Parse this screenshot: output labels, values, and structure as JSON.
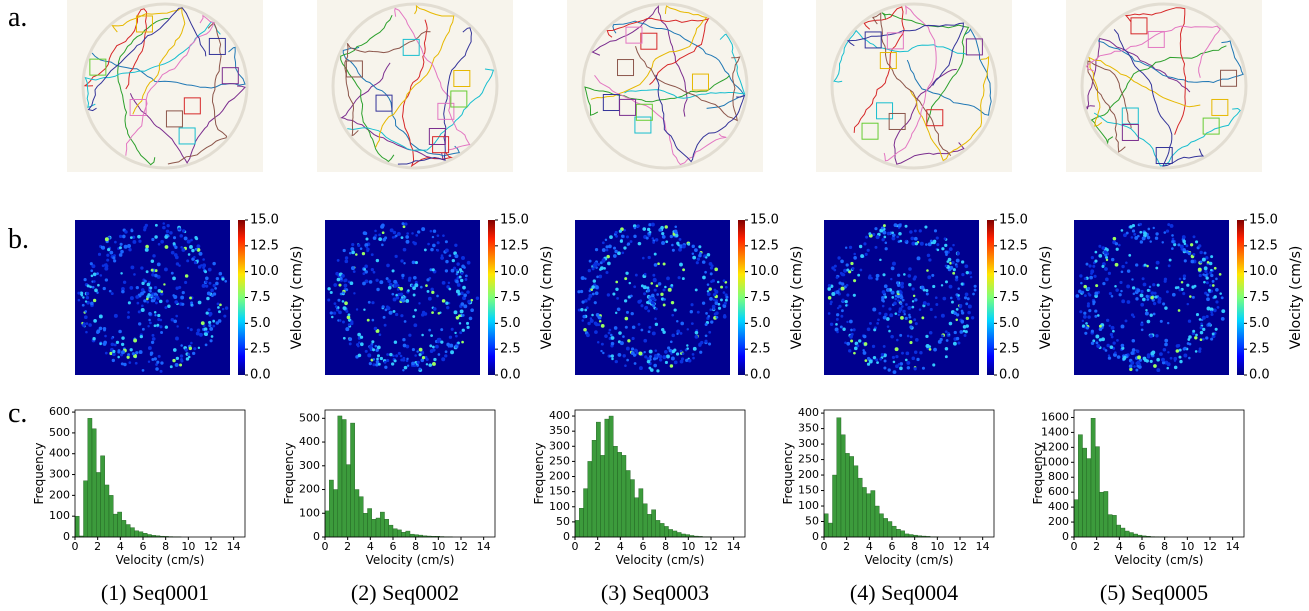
{
  "panel_labels": [
    "a.",
    "b.",
    "c."
  ],
  "chart_data": [
    {
      "type": "heatmap",
      "colorbar_label": "Velocity (cm/s)",
      "clim": [
        0,
        15
      ],
      "cticks": [
        {
          "value": 0,
          "label": "0.0"
        },
        {
          "value": 2.5,
          "label": "2.5"
        },
        {
          "value": 5,
          "label": "5.0"
        },
        {
          "value": 7.5,
          "label": "7.5"
        },
        {
          "value": 10,
          "label": "10.0"
        },
        {
          "value": 12.5,
          "label": "12.5"
        },
        {
          "value": 15,
          "label": "15.0"
        }
      ]
    },
    {
      "type": "heatmap",
      "colorbar_label": "Velocity (cm/s)",
      "clim": [
        0,
        15
      ],
      "cticks": [
        {
          "value": 0,
          "label": "0.0"
        },
        {
          "value": 2.5,
          "label": "2.5"
        },
        {
          "value": 5,
          "label": "5.0"
        },
        {
          "value": 7.5,
          "label": "7.5"
        },
        {
          "value": 10,
          "label": "10.0"
        },
        {
          "value": 12.5,
          "label": "12.5"
        },
        {
          "value": 15,
          "label": "15.0"
        }
      ]
    },
    {
      "type": "heatmap",
      "colorbar_label": "Velocity (cm/s)",
      "clim": [
        0,
        15
      ],
      "cticks": [
        {
          "value": 0,
          "label": "0.0"
        },
        {
          "value": 2.5,
          "label": "2.5"
        },
        {
          "value": 5,
          "label": "5.0"
        },
        {
          "value": 7.5,
          "label": "7.5"
        },
        {
          "value": 10,
          "label": "10.0"
        },
        {
          "value": 12.5,
          "label": "12.5"
        },
        {
          "value": 15,
          "label": "15.0"
        }
      ]
    },
    {
      "type": "heatmap",
      "colorbar_label": "Velocity (cm/s)",
      "clim": [
        0,
        15
      ],
      "cticks": [
        {
          "value": 0,
          "label": "0.0"
        },
        {
          "value": 2.5,
          "label": "2.5"
        },
        {
          "value": 5,
          "label": "5.0"
        },
        {
          "value": 7.5,
          "label": "7.5"
        },
        {
          "value": 10,
          "label": "10.0"
        },
        {
          "value": 12.5,
          "label": "12.5"
        },
        {
          "value": 15,
          "label": "15.0"
        }
      ]
    },
    {
      "type": "heatmap",
      "colorbar_label": "Velocity (cm/s)",
      "clim": [
        0,
        15
      ],
      "cticks": [
        {
          "value": 0,
          "label": "0.0"
        },
        {
          "value": 2.5,
          "label": "2.5"
        },
        {
          "value": 5,
          "label": "5.0"
        },
        {
          "value": 7.5,
          "label": "7.5"
        },
        {
          "value": 10,
          "label": "10.0"
        },
        {
          "value": 12.5,
          "label": "12.5"
        },
        {
          "value": 15,
          "label": "15.0"
        }
      ]
    },
    {
      "type": "histogram",
      "caption": "(1) Seq0001",
      "xlabel": "Velocity (cm/s)",
      "ylabel": "Frequency",
      "color": "#3c9b3c",
      "bins": [
        0,
        0.375,
        0.75,
        1.125,
        1.5,
        1.875,
        2.25,
        2.625,
        3,
        3.375,
        3.75,
        4.125,
        4.5,
        4.875,
        5.25,
        5.625,
        6,
        6.375,
        6.75,
        7.125,
        7.5,
        7.875,
        8.25,
        8.625,
        9,
        9.375,
        9.75,
        10.125,
        10.5,
        10.875,
        11.25,
        11.625,
        12,
        12.375,
        12.75,
        13.125,
        13.5,
        13.875,
        14.25,
        14.625,
        15
      ],
      "values": [
        100,
        5,
        270,
        570,
        520,
        310,
        390,
        250,
        200,
        110,
        120,
        80,
        60,
        45,
        30,
        25,
        18,
        12,
        8,
        6,
        4,
        3,
        2,
        1,
        1,
        0,
        0,
        0,
        0,
        0,
        0,
        0,
        0,
        0,
        0,
        0,
        0,
        0,
        0,
        0
      ],
      "xlim": [
        0,
        15
      ],
      "xticks": [
        0,
        2,
        4,
        6,
        8,
        10,
        12,
        14
      ],
      "ylim": [
        0,
        610
      ],
      "yticks": [
        0,
        100,
        200,
        300,
        400,
        500,
        600
      ]
    },
    {
      "type": "histogram",
      "caption": "(2) Seq0002",
      "xlabel": "Velocity (cm/s)",
      "ylabel": "Frequency",
      "color": "#3c9b3c",
      "bins": [
        0,
        0.375,
        0.75,
        1.125,
        1.5,
        1.875,
        2.25,
        2.625,
        3,
        3.375,
        3.75,
        4.125,
        4.5,
        4.875,
        5.25,
        5.625,
        6,
        6.375,
        6.75,
        7.125,
        7.5,
        7.875,
        8.25,
        8.625,
        9,
        9.375,
        9.75,
        10.125,
        10.5,
        10.875,
        11.25,
        11.625,
        12,
        12.375,
        12.75,
        13.125,
        13.5,
        13.875,
        14.25,
        14.625,
        15
      ],
      "values": [
        110,
        240,
        200,
        510,
        495,
        305,
        480,
        200,
        170,
        100,
        120,
        75,
        80,
        105,
        75,
        50,
        35,
        30,
        20,
        25,
        12,
        10,
        8,
        5,
        4,
        3,
        3,
        2,
        1,
        1,
        0,
        0,
        0,
        0,
        0,
        0,
        0,
        0,
        0,
        0
      ],
      "xlim": [
        0,
        15
      ],
      "xticks": [
        0,
        2,
        4,
        6,
        8,
        10,
        12,
        14
      ],
      "ylim": [
        0,
        535
      ],
      "yticks": [
        0,
        100,
        200,
        300,
        400,
        500
      ]
    },
    {
      "type": "histogram",
      "caption": "(3) Seq0003",
      "xlabel": "Velocity (cm/s)",
      "ylabel": "Frequency",
      "color": "#3c9b3c",
      "bins": [
        0,
        0.375,
        0.75,
        1.125,
        1.5,
        1.875,
        2.25,
        2.625,
        3,
        3.375,
        3.75,
        4.125,
        4.5,
        4.875,
        5.25,
        5.625,
        6,
        6.375,
        6.75,
        7.125,
        7.5,
        7.875,
        8.25,
        8.625,
        9,
        9.375,
        9.75,
        10.125,
        10.5,
        10.875,
        11.25,
        11.625,
        12,
        12.375,
        12.75,
        13.125,
        13.5,
        13.875,
        14.25,
        14.625,
        15
      ],
      "values": [
        55,
        95,
        160,
        250,
        320,
        380,
        270,
        390,
        400,
        300,
        280,
        270,
        220,
        190,
        130,
        160,
        110,
        75,
        90,
        55,
        45,
        35,
        25,
        20,
        15,
        10,
        8,
        5,
        3,
        2,
        1,
        1,
        0,
        0,
        0,
        0,
        0,
        0,
        0,
        0
      ],
      "xlim": [
        0,
        15
      ],
      "xticks": [
        0,
        2,
        4,
        6,
        8,
        10,
        12,
        14
      ],
      "ylim": [
        0,
        420
      ],
      "yticks": [
        0,
        50,
        100,
        150,
        200,
        250,
        300,
        350,
        400
      ]
    },
    {
      "type": "histogram",
      "caption": "(4) Seq0004",
      "xlabel": "Velocity (cm/s)",
      "ylabel": "Frequency",
      "color": "#3c9b3c",
      "bins": [
        0,
        0.375,
        0.75,
        1.125,
        1.5,
        1.875,
        2.25,
        2.625,
        3,
        3.375,
        3.75,
        4.125,
        4.5,
        4.875,
        5.25,
        5.625,
        6,
        6.375,
        6.75,
        7.125,
        7.5,
        7.875,
        8.25,
        8.625,
        9,
        9.375,
        9.75,
        10.125,
        10.5,
        10.875,
        11.25,
        11.625,
        12,
        12.375,
        12.75,
        13.125,
        13.5,
        13.875,
        14.25,
        14.625,
        15
      ],
      "values": [
        75,
        45,
        200,
        385,
        330,
        270,
        260,
        230,
        190,
        160,
        140,
        150,
        100,
        75,
        60,
        50,
        35,
        25,
        20,
        10,
        8,
        6,
        4,
        3,
        2,
        1,
        1,
        0,
        0,
        0,
        0,
        0,
        0,
        0,
        0,
        0,
        0,
        0,
        0,
        0
      ],
      "xlim": [
        0,
        15
      ],
      "xticks": [
        0,
        2,
        4,
        6,
        8,
        10,
        12,
        14
      ],
      "ylim": [
        0,
        410
      ],
      "yticks": [
        0,
        50,
        100,
        150,
        200,
        250,
        300,
        350,
        400
      ]
    },
    {
      "type": "histogram",
      "caption": "(5) Seq0005",
      "xlabel": "Velocity (cm/s)",
      "ylabel": "Frequency",
      "color": "#3c9b3c",
      "bins": [
        0,
        0.375,
        0.75,
        1.125,
        1.5,
        1.875,
        2.25,
        2.625,
        3,
        3.375,
        3.75,
        4.125,
        4.5,
        4.875,
        5.25,
        5.625,
        6,
        6.375,
        6.75,
        7.125,
        7.5,
        7.875,
        8.25,
        8.625,
        9,
        9.375,
        9.75,
        10.125,
        10.5,
        10.875,
        11.25,
        11.625,
        12,
        12.375,
        12.75,
        13.125,
        13.5,
        13.875,
        14.25,
        14.625,
        15
      ],
      "values": [
        500,
        1370,
        1190,
        1050,
        1590,
        1210,
        600,
        610,
        300,
        290,
        160,
        120,
        80,
        60,
        40,
        25,
        15,
        10,
        5,
        3,
        2,
        1,
        0,
        0,
        0,
        0,
        0,
        0,
        0,
        0,
        0,
        0,
        0,
        0,
        0,
        0,
        0,
        0,
        0,
        0
      ],
      "xlim": [
        0,
        15
      ],
      "xticks": [
        0,
        2,
        4,
        6,
        8,
        10,
        12,
        14
      ],
      "ylim": [
        0,
        1700
      ],
      "yticks": [
        0,
        200,
        400,
        600,
        800,
        1000,
        1200,
        1400,
        1600
      ]
    }
  ]
}
